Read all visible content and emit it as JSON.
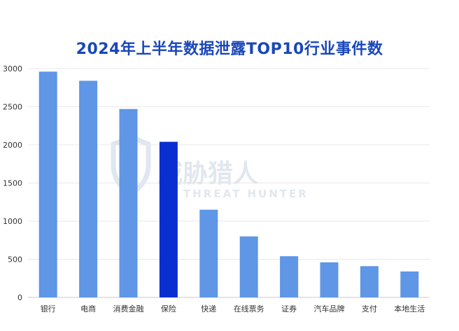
{
  "chart_data": {
    "type": "bar",
    "title": "2024年上半年数据泄露TOP10行业事件数",
    "xlabel": "",
    "ylabel": "",
    "categories": [
      "银行",
      "电商",
      "消费金融",
      "保险",
      "快递",
      "在线票务",
      "证券",
      "汽车品牌",
      "支付",
      "本地生活"
    ],
    "values": [
      2960,
      2840,
      2470,
      2040,
      1150,
      800,
      540,
      460,
      410,
      340
    ],
    "highlight_index": 3,
    "ylim": [
      0,
      3000
    ],
    "yticks": [
      0,
      500,
      1000,
      1500,
      2000,
      2500,
      3000
    ],
    "grid": true,
    "bar_color": "#5f96e6",
    "highlight_color": "#0a2fd0"
  },
  "watermark": {
    "text": "威胁猎人",
    "subtext": "THREAT HUNTER"
  }
}
